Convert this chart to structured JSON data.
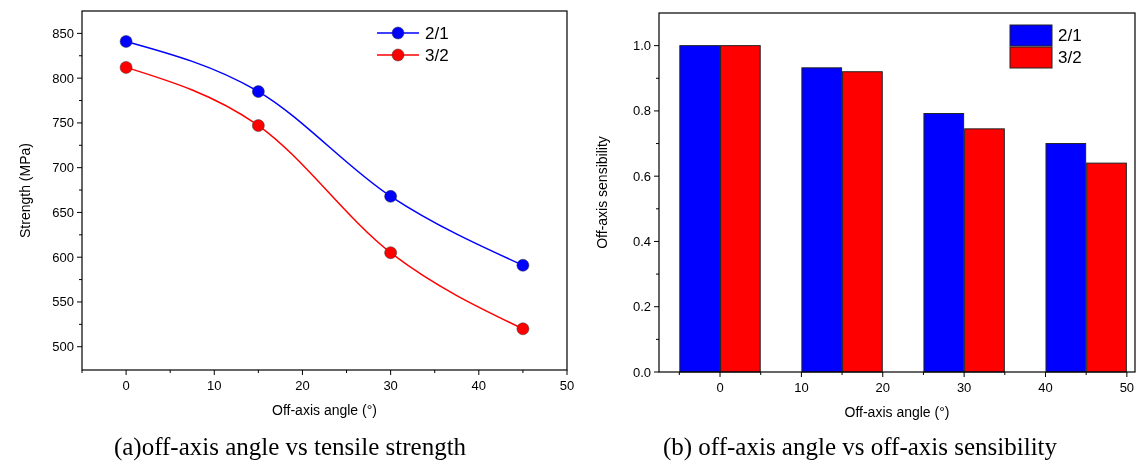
{
  "chart_data": [
    {
      "type": "line",
      "xlabel": "Off-axis angle (°)",
      "ylabel": "Strength (MPa)",
      "annotations": [
        "(a)off-axis angle vs tensile strength"
      ],
      "x": [
        0,
        15,
        30,
        45
      ],
      "xlim": [
        -5,
        50
      ],
      "xticks": [
        {
          "value": -5,
          "label": null
        },
        0,
        {
          "value": 5,
          "label": null
        },
        10,
        {
          "value": 15,
          "label": null
        },
        20,
        {
          "value": 25,
          "label": null
        },
        30,
        {
          "value": 35,
          "label": null
        },
        40,
        {
          "value": 45,
          "label": null
        },
        50
      ],
      "ylim": [
        474,
        875
      ],
      "yticks": [
        500,
        {
          "value": 525,
          "label": null
        },
        550,
        {
          "value": 575,
          "label": null
        },
        600,
        {
          "value": 625,
          "label": null
        },
        650,
        {
          "value": 675,
          "label": null
        },
        700,
        {
          "value": 725,
          "label": null
        },
        750,
        {
          "value": 775,
          "label": null
        },
        800,
        {
          "value": 825,
          "label": null
        },
        850
      ],
      "marker": "circle",
      "line_style": "solid",
      "legend": "top right",
      "grid": false,
      "series": [
        {
          "name": "2/1",
          "color": "#0000ff",
          "values": [
            841,
            785,
            668,
            591
          ]
        },
        {
          "name": "3/2",
          "color": "#ff0000",
          "values": [
            812,
            747,
            605,
            520
          ]
        }
      ]
    },
    {
      "type": "bar",
      "xlabel": "Off-axis angle (°)",
      "ylabel": "Off-axis sensibility",
      "annotations": [
        "(b) off-axis angle vs off-axis sensibility"
      ],
      "xlim": [
        -7.5,
        51
      ],
      "xticks": [
        {
          "value": -5,
          "label": null
        },
        0,
        {
          "value": 5,
          "label": null
        },
        10,
        {
          "value": 15,
          "label": null
        },
        20,
        {
          "value": 25,
          "label": null
        },
        30,
        {
          "value": 35,
          "label": null
        },
        40,
        {
          "value": 45,
          "label": null
        },
        50
      ],
      "ylim": [
        0,
        1.1
      ],
      "yticks": [
        {
          "value": 0,
          "label": "0.0"
        },
        {
          "value": 0.1,
          "label": null
        },
        {
          "value": 0.2,
          "label": "0.2"
        },
        {
          "value": 0.3,
          "label": null
        },
        {
          "value": 0.4,
          "label": "0.4"
        },
        {
          "value": 0.5,
          "label": null
        },
        {
          "value": 0.6,
          "label": "0.6"
        },
        {
          "value": 0.7,
          "label": null
        },
        {
          "value": 0.8,
          "label": "0.8"
        },
        {
          "value": 0.9,
          "label": null
        },
        {
          "value": 1,
          "label": "1.0"
        }
      ],
      "legend": "top right",
      "grid": false,
      "series": [
        {
          "name": "2/1",
          "color": "#0000ff",
          "x": [
            -2.5,
            12.5,
            27.5,
            42.5
          ],
          "values": [
            1.0,
            0.932,
            0.792,
            0.7
          ]
        },
        {
          "name": "3/2",
          "color": "#ff0000",
          "x": [
            2.5,
            17.5,
            32.5,
            47.5
          ],
          "values": [
            1.0,
            0.92,
            0.745,
            0.64
          ]
        }
      ]
    }
  ]
}
